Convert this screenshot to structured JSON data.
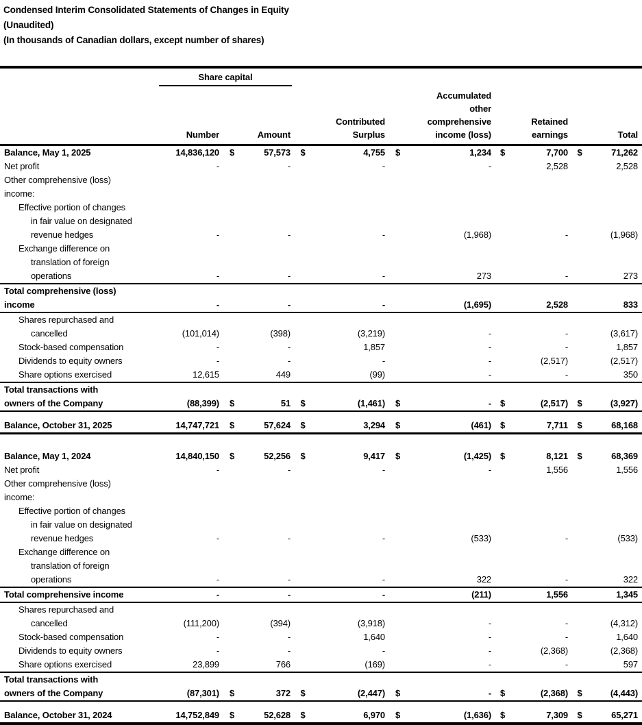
{
  "document": {
    "title_lines": [
      "Condensed Interim Consolidated Statements of Changes in Equity",
      "(Unaudited)",
      "(In thousands of Canadian dollars, except number of shares)"
    ]
  },
  "table": {
    "group_header": "Share capital",
    "currency_symbol": "$",
    "columns": {
      "number": "Number",
      "amount": "Amount",
      "surplus": "Contributed\nSurplus",
      "aoci": "Accumulated\nother\ncomprehensive\nincome (loss)",
      "retained": "Retained\nearnings",
      "total": "Total"
    },
    "rows": [
      {
        "label": "Balance, May 1, 2025",
        "indent": 0,
        "bold": true,
        "dollars": true,
        "values": [
          "14,836,120",
          "57,573",
          "4,755",
          "1,234",
          "7,700",
          "71,262"
        ]
      },
      {
        "label": "Net profit",
        "indent": 0,
        "values": [
          "-",
          "-",
          "-",
          "-",
          "2,528",
          "2,528"
        ]
      },
      {
        "label": "Other comprehensive (loss)",
        "indent": 0
      },
      {
        "label": "income:",
        "indent": 0
      },
      {
        "label": "Effective portion of changes",
        "indent": 1
      },
      {
        "label": "in fair value on designated",
        "indent": 2
      },
      {
        "label": "revenue hedges",
        "indent": 2,
        "values": [
          "-",
          "-",
          "-",
          "(1,968)",
          "-",
          "(1,968)"
        ]
      },
      {
        "label": "Exchange difference on",
        "indent": 1
      },
      {
        "label": "translation of foreign",
        "indent": 2
      },
      {
        "label": "operations",
        "indent": 2,
        "values": [
          "-",
          "-",
          "-",
          "273",
          "-",
          "273"
        ],
        "rule_after": "thin"
      },
      {
        "label": "Total comprehensive (loss)",
        "indent": 0,
        "bold": true
      },
      {
        "label": "income",
        "indent": 0,
        "bold": true,
        "values": [
          "-",
          "-",
          "-",
          "(1,695)",
          "2,528",
          "833"
        ],
        "rule_after": "thin"
      },
      {
        "label": "Shares repurchased and",
        "indent": 1
      },
      {
        "label": "cancelled",
        "indent": 2,
        "values": [
          "(101,014)",
          "(398)",
          "(3,219)",
          "-",
          "-",
          "(3,617)"
        ]
      },
      {
        "label": "Stock-based compensation",
        "indent": 1,
        "values": [
          "-",
          "-",
          "1,857",
          "-",
          "-",
          "1,857"
        ]
      },
      {
        "label": "Dividends to equity owners",
        "indent": 1,
        "values": [
          "-",
          "-",
          "-",
          "-",
          "(2,517)",
          "(2,517)"
        ]
      },
      {
        "label": "Share options exercised",
        "indent": 1,
        "values": [
          "12,615",
          "449",
          "(99)",
          "-",
          "-",
          "350"
        ],
        "rule_after": "thin"
      },
      {
        "label": "Total transactions with",
        "indent": 0,
        "bold": true
      },
      {
        "label": "owners of the Company",
        "indent": 0,
        "bold": true,
        "dollars": true,
        "values": [
          "(88,399)",
          "51",
          "(1,461)",
          "-",
          "(2,517)",
          "(3,927)"
        ],
        "rule_after": "thin",
        "gap_after": 10
      },
      {
        "label": "Balance, October 31, 2025",
        "indent": 0,
        "bold": true,
        "dollars": true,
        "values": [
          "14,747,721",
          "57,624",
          "3,294",
          "(461)",
          "7,711",
          "68,168"
        ],
        "rule_after": "thick",
        "gap_after": 22
      },
      {
        "label": "Balance, May 1, 2024",
        "indent": 0,
        "bold": true,
        "dollars": true,
        "values": [
          "14,840,150",
          "52,256",
          "9,417",
          "(1,425)",
          "8,121",
          "68,369"
        ]
      },
      {
        "label": "Net profit",
        "indent": 0,
        "values": [
          "-",
          "-",
          "-",
          "-",
          "1,556",
          "1,556"
        ]
      },
      {
        "label": "Other comprehensive (loss)",
        "indent": 0
      },
      {
        "label": "income:",
        "indent": 0
      },
      {
        "label": "Effective portion of changes",
        "indent": 1
      },
      {
        "label": "in fair value on designated",
        "indent": 2
      },
      {
        "label": "revenue hedges",
        "indent": 2,
        "values": [
          "-",
          "-",
          "-",
          "(533)",
          "-",
          "(533)"
        ]
      },
      {
        "label": "Exchange difference on",
        "indent": 1
      },
      {
        "label": "translation of foreign",
        "indent": 2
      },
      {
        "label": "operations",
        "indent": 2,
        "values": [
          "-",
          "-",
          "-",
          "322",
          "-",
          "322"
        ],
        "rule_after": "thin"
      },
      {
        "label": "Total comprehensive income",
        "indent": 0,
        "bold": true,
        "values": [
          "-",
          "-",
          "-",
          "(211)",
          "1,556",
          "1,345"
        ],
        "rule_after": "thin"
      },
      {
        "label": "Shares repurchased and",
        "indent": 1
      },
      {
        "label": "cancelled",
        "indent": 2,
        "values": [
          "(111,200)",
          "(394)",
          "(3,918)",
          "-",
          "-",
          "(4,312)"
        ]
      },
      {
        "label": "Stock-based compensation",
        "indent": 1,
        "values": [
          "-",
          "-",
          "1,640",
          "-",
          "-",
          "1,640"
        ]
      },
      {
        "label": "Dividends to equity owners",
        "indent": 1,
        "values": [
          "-",
          "-",
          "-",
          "-",
          "(2,368)",
          "(2,368)"
        ]
      },
      {
        "label": "Share options exercised",
        "indent": 1,
        "values": [
          "23,899",
          "766",
          "(169)",
          "-",
          "-",
          "597"
        ],
        "rule_after": "thin"
      },
      {
        "label": "Total transactions with",
        "indent": 0,
        "bold": true
      },
      {
        "label": "owners of the Company",
        "indent": 0,
        "bold": true,
        "dollars": true,
        "values": [
          "(87,301)",
          "372",
          "(2,447)",
          "-",
          "(2,368)",
          "(4,443)"
        ],
        "rule_after": "thin",
        "gap_after": 10
      },
      {
        "label": "Balance, October 31, 2024",
        "indent": 0,
        "bold": true,
        "dollars": true,
        "values": [
          "14,752,849",
          "52,628",
          "6,970",
          "(1,636)",
          "7,309",
          "65,271"
        ],
        "rule_after": "bottom"
      }
    ]
  }
}
